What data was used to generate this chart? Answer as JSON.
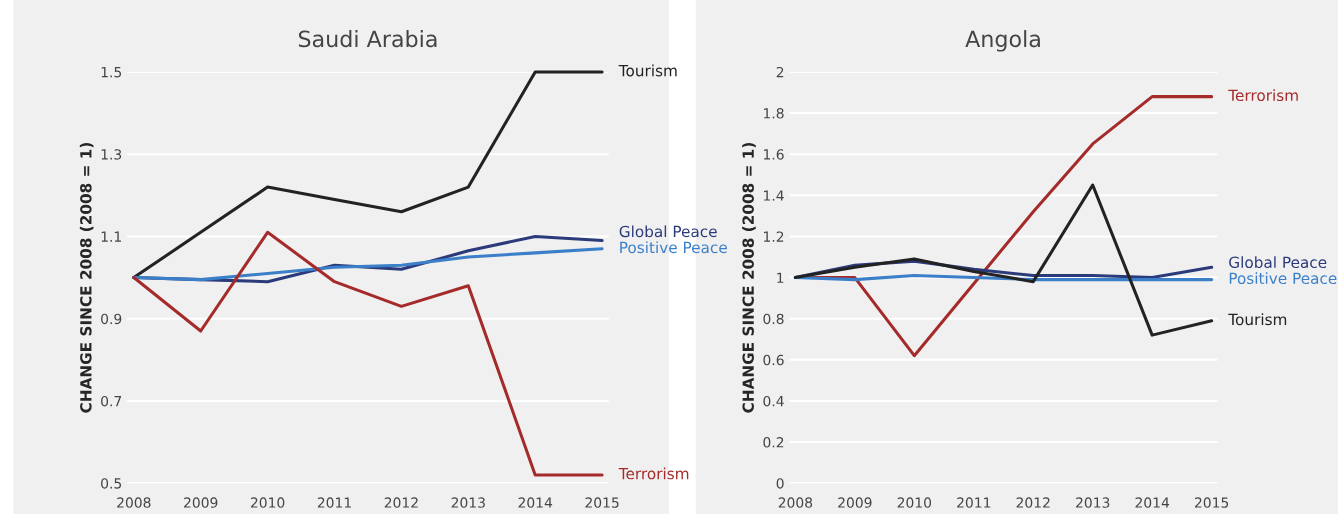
{
  "chart_data": [
    {
      "type": "line",
      "title": "Saudi Arabia",
      "ylabel": "CHANGE SINCE 2008 (2008 = 1)",
      "categories": [
        "2008",
        "2009",
        "2010",
        "2011",
        "2012",
        "2013",
        "2014",
        "2015"
      ],
      "ylim": [
        0.5,
        1.5
      ],
      "yticks": [
        0.5,
        0.7,
        0.9,
        1.1,
        1.3,
        1.5
      ],
      "grid": "y",
      "legend": false,
      "series": [
        {
          "name": "Tourism",
          "color": "#222222",
          "values": [
            1,
            1.11,
            1.22,
            1.19,
            1.16,
            1.22,
            1.5,
            1.5
          ]
        },
        {
          "name": "Global Peace",
          "color": "#2b3a7a",
          "values": [
            1,
            0.995,
            0.99,
            1.03,
            1.02,
            1.065,
            1.1,
            1.09
          ]
        },
        {
          "name": "Positive Peace",
          "color": "#3a7fc8",
          "values": [
            1,
            0.995,
            1.01,
            1.025,
            1.03,
            1.05,
            1.06,
            1.07
          ]
        },
        {
          "name": "Terrorism",
          "color": "#a52a2a",
          "values": [
            1,
            0.87,
            1.11,
            0.99,
            0.93,
            0.98,
            0.52,
            0.52
          ]
        }
      ]
    },
    {
      "type": "line",
      "title": "Angola",
      "ylabel": "CHANGE SINCE 2008 (2008 = 1)",
      "categories": [
        "2008",
        "2009",
        "2010",
        "2011",
        "2012",
        "2013",
        "2014",
        "2015"
      ],
      "ylim": [
        0,
        2
      ],
      "yticks": [
        0,
        0.2,
        0.4,
        0.6,
        0.8,
        1,
        1.2,
        1.4,
        1.6,
        1.8,
        2
      ],
      "grid": "y",
      "legend": false,
      "series": [
        {
          "name": "Terrorism",
          "color": "#a52a2a",
          "values": [
            1,
            1,
            0.62,
            0.97,
            1.32,
            1.65,
            1.88,
            1.88
          ]
        },
        {
          "name": "Global Peace",
          "color": "#2b3a7a",
          "values": [
            1,
            1.06,
            1.08,
            1.04,
            1.01,
            1.01,
            1.0,
            1.05
          ]
        },
        {
          "name": "Positive Peace",
          "color": "#3a7fc8",
          "values": [
            1,
            0.99,
            1.01,
            1.0,
            0.99,
            0.99,
            0.99,
            0.99
          ]
        },
        {
          "name": "Tourism",
          "color": "#222222",
          "values": [
            1,
            1.05,
            1.09,
            1.03,
            0.98,
            1.45,
            0.72,
            0.79
          ]
        }
      ]
    }
  ]
}
